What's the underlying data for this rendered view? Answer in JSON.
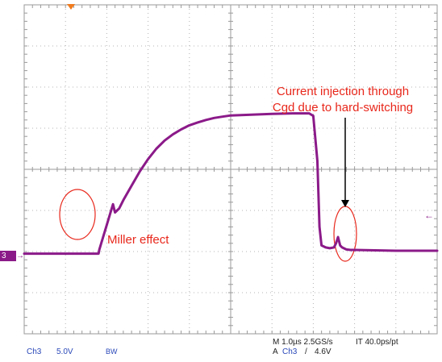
{
  "chart_data": {
    "type": "line",
    "title": "",
    "xlabel": "",
    "ylabel": "",
    "x_unit": "µs",
    "y_unit": "V",
    "xlim": [
      0,
      10
    ],
    "ylim": [
      -3,
      5
    ],
    "x_divisions": 10,
    "y_divisions": 8,
    "grid": true,
    "series": [
      {
        "x": [
          0.0,
          1.0,
          1.8,
          1.82,
          2.0,
          2.15,
          2.2,
          2.25,
          2.3,
          2.4,
          2.6,
          2.8,
          3.0,
          3.2,
          3.4,
          3.6,
          3.8,
          4.0,
          4.2,
          4.4,
          4.6,
          4.8,
          5.0,
          5.5,
          6.0,
          6.5,
          6.9,
          7.0,
          7.1,
          7.15,
          7.2,
          7.3,
          7.4,
          7.5,
          7.55,
          7.6,
          7.65,
          7.7,
          7.8,
          7.9,
          8.0,
          8.5,
          9.0,
          9.5,
          10.0
        ],
        "y": [
          -1.05,
          -1.05,
          -1.05,
          -0.95,
          -0.35,
          0.15,
          -0.05,
          0.0,
          0.05,
          0.25,
          0.6,
          0.95,
          1.25,
          1.5,
          1.7,
          1.85,
          1.97,
          2.07,
          2.14,
          2.2,
          2.25,
          2.28,
          2.31,
          2.33,
          2.35,
          2.36,
          2.36,
          2.3,
          1.2,
          -0.4,
          -0.85,
          -0.9,
          -0.92,
          -0.9,
          -0.8,
          -0.65,
          -0.85,
          -0.9,
          -0.95,
          -0.96,
          -0.96,
          -0.97,
          -0.98,
          -0.98,
          -0.98
        ]
      }
    ],
    "annotations": [
      "Current injection through",
      "Cgd due to hard-switching",
      "Miller effect"
    ],
    "trace_color": "#8b1a89",
    "annotation_color": "#e8271b",
    "channel": "Ch3",
    "scale": "5.0V",
    "bandwidth": "BW",
    "timebase": "M 1.0µs 2.5GS/s",
    "record": "IT 40.0ps/pt",
    "trigger": "A",
    "trigger_source": "Ch3",
    "trigger_slope": "/",
    "trigger_level": "4.6V",
    "channel_marker": "3"
  }
}
